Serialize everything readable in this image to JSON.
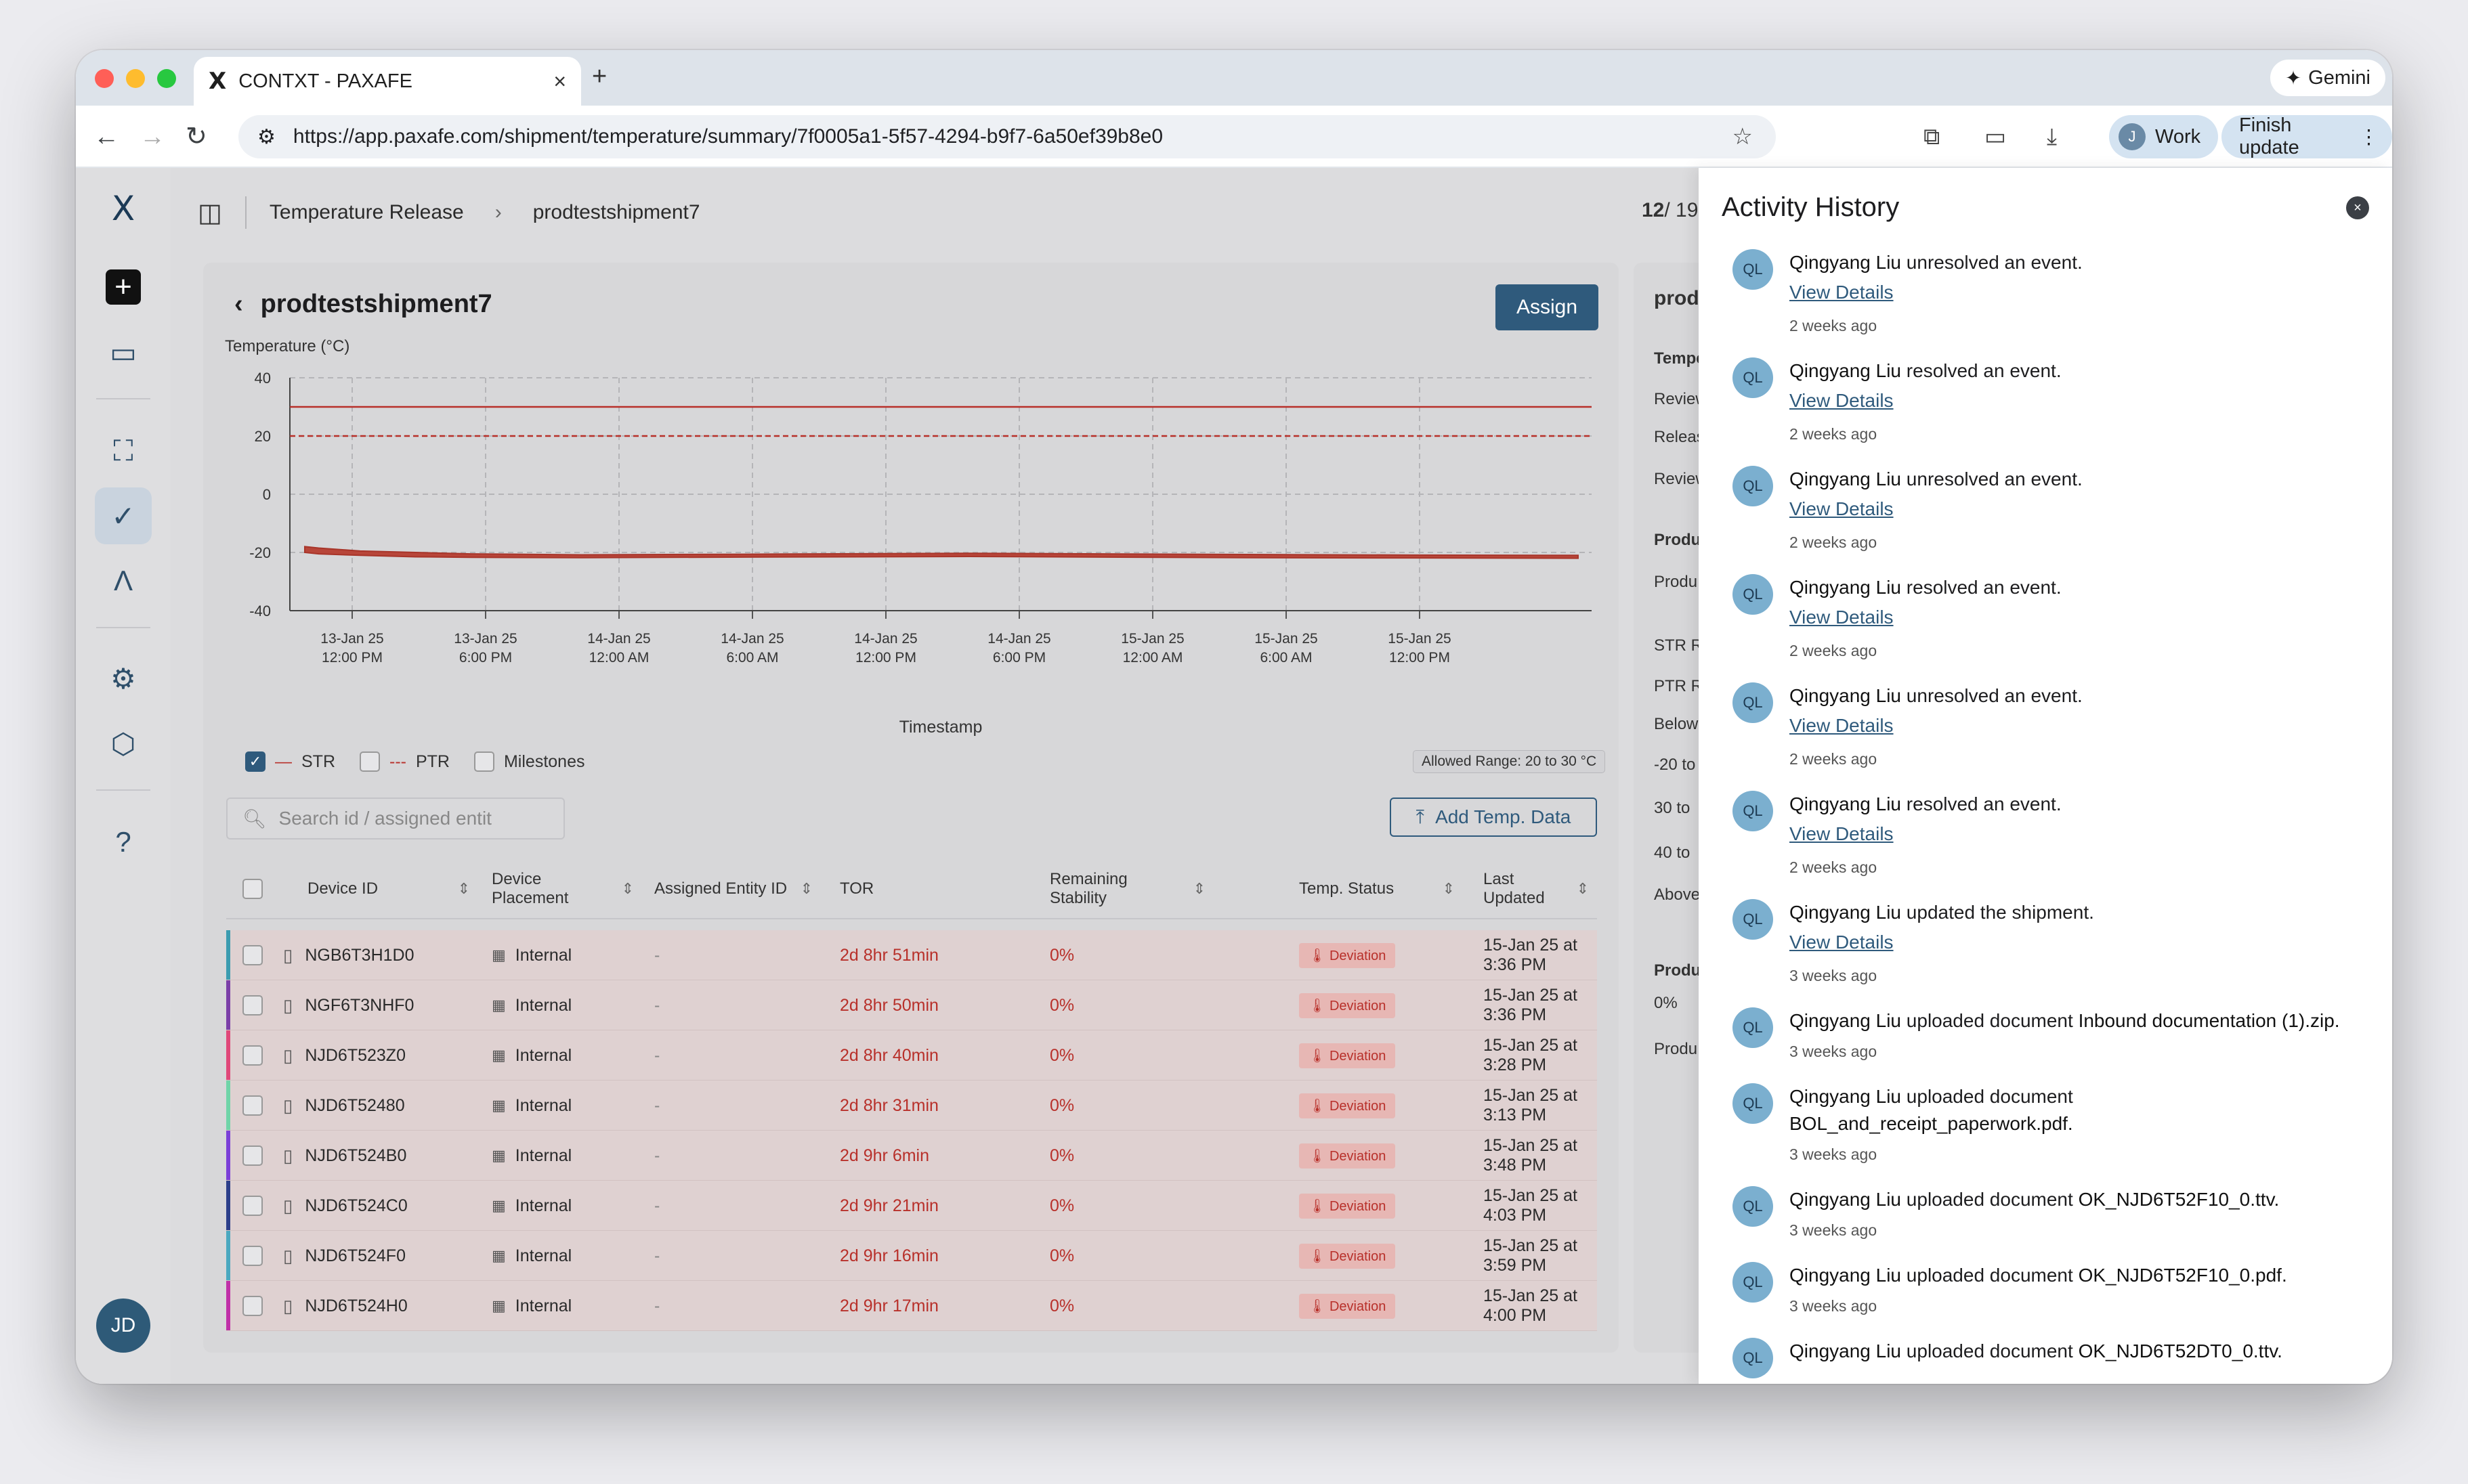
{
  "browser": {
    "tab_title": "CONTXT - PAXAFE",
    "url": "https://app.paxafe.com/shipment/temperature/summary/7f0005a1-5f57-4294-b9f7-6a50ef39b8e0",
    "gemini_label": "Gemini",
    "profile_initial": "J",
    "profile_label": "Work",
    "update_label": "Finish update"
  },
  "app": {
    "breadcrumb": [
      "Temperature Release",
      "prodtestshipment7"
    ],
    "pager_current": "12",
    "pager_total": "/ 19",
    "user_initials": "JD"
  },
  "shipment": {
    "title": "prodtestshipment7",
    "assign_label": "Assign",
    "search_placeholder": "Search id / assigned entit",
    "add_temp_label": "Add Temp. Data",
    "allowed_range": "Allowed Range: 20 to 30 °C"
  },
  "chart_data": {
    "type": "area",
    "ylabel": "Temperature (°C)",
    "xlabel": "Timestamp",
    "ylim": [
      -40,
      40
    ],
    "yticks": [
      40,
      20,
      0,
      -20,
      -40
    ],
    "xticks": [
      [
        "13-Jan 25",
        "12:00 PM"
      ],
      [
        "13-Jan 25",
        "6:00 PM"
      ],
      [
        "14-Jan 25",
        "12:00 AM"
      ],
      [
        "14-Jan 25",
        "6:00 AM"
      ],
      [
        "14-Jan 25",
        "12:00 PM"
      ],
      [
        "14-Jan 25",
        "6:00 PM"
      ],
      [
        "15-Jan 25",
        "12:00 AM"
      ],
      [
        "15-Jan 25",
        "6:00 AM"
      ],
      [
        "15-Jan 25",
        "12:00 PM"
      ]
    ],
    "threshold_lines": [
      30,
      20
    ],
    "series_band": {
      "x_hours": [
        0,
        0.5,
        2,
        4,
        6,
        10,
        16,
        24,
        34,
        40,
        46
      ],
      "upper": [
        -18,
        -18.5,
        -19.5,
        -20,
        -20.5,
        -20.8,
        -20.6,
        -20.3,
        -20.7,
        -20.9,
        -21
      ],
      "lower": [
        -20,
        -20.5,
        -21,
        -21.5,
        -21.7,
        -21.8,
        -21.6,
        -21.4,
        -21.8,
        -21.9,
        -22
      ]
    },
    "legend": [
      {
        "label": "STR",
        "checked": true
      },
      {
        "label": "PTR",
        "checked": false
      },
      {
        "label": "Milestones",
        "checked": false
      }
    ],
    "grid": true
  },
  "table": {
    "headers": [
      "Device ID",
      "Device Placement",
      "Assigned Entity ID",
      "TOR",
      "Remaining Stability",
      "Temp. Status",
      "Last Updated"
    ],
    "rows": [
      {
        "id": "NGB6T3H1D0",
        "placement": "Internal",
        "entity": "-",
        "tor": "2d 8hr 51min",
        "stability": "0%",
        "status": "Deviation",
        "updated": "15-Jan 25 at 3:36 PM",
        "color": "#3b9cb0"
      },
      {
        "id": "NGF6T3NHF0",
        "placement": "Internal",
        "entity": "-",
        "tor": "2d 8hr 50min",
        "stability": "0%",
        "status": "Deviation",
        "updated": "15-Jan 25 at 3:36 PM",
        "color": "#7b3fa8"
      },
      {
        "id": "NJD6T523Z0",
        "placement": "Internal",
        "entity": "-",
        "tor": "2d 8hr 40min",
        "stability": "0%",
        "status": "Deviation",
        "updated": "15-Jan 25 at 3:28 PM",
        "color": "#e0487a"
      },
      {
        "id": "NJD6T52480",
        "placement": "Internal",
        "entity": "-",
        "tor": "2d 8hr 31min",
        "stability": "0%",
        "status": "Deviation",
        "updated": "15-Jan 25 at 3:13 PM",
        "color": "#6fd4a8"
      },
      {
        "id": "NJD6T524B0",
        "placement": "Internal",
        "entity": "-",
        "tor": "2d 9hr 6min",
        "stability": "0%",
        "status": "Deviation",
        "updated": "15-Jan 25 at 3:48 PM",
        "color": "#7b3fd8"
      },
      {
        "id": "NJD6T524C0",
        "placement": "Internal",
        "entity": "-",
        "tor": "2d 9hr 21min",
        "stability": "0%",
        "status": "Deviation",
        "updated": "15-Jan 25 at 4:03 PM",
        "color": "#2c3f8a"
      },
      {
        "id": "NJD6T524F0",
        "placement": "Internal",
        "entity": "-",
        "tor": "2d 9hr 16min",
        "stability": "0%",
        "status": "Deviation",
        "updated": "15-Jan 25 at 3:59 PM",
        "color": "#4aa8c0"
      },
      {
        "id": "NJD6T524H0",
        "placement": "Internal",
        "entity": "-",
        "tor": "2d 9hr 17min",
        "stability": "0%",
        "status": "Deviation",
        "updated": "15-Jan 25 at 4:00 PM",
        "color": "#c030a8"
      }
    ]
  },
  "side_panel": {
    "labels": [
      "prod",
      "Tempe",
      "Review",
      "Releas",
      "Review",
      "Produ",
      "Produ",
      "STR R",
      "PTR R",
      "Below",
      "-20 to",
      "30 to",
      "40 to",
      "Above",
      "Produ",
      "0%",
      "Produ"
    ]
  },
  "activity": {
    "title": "Activity History",
    "avatar": "QL",
    "items": [
      {
        "user": "Qingyang Liu",
        "action": "unresolved an event.",
        "link": "View Details",
        "ago": "2 weeks ago"
      },
      {
        "user": "Qingyang Liu",
        "action": "resolved an event.",
        "link": "View Details",
        "ago": "2 weeks ago"
      },
      {
        "user": "Qingyang Liu",
        "action": "unresolved an event.",
        "link": "View Details",
        "ago": "2 weeks ago"
      },
      {
        "user": "Qingyang Liu",
        "action": "resolved an event.",
        "link": "View Details",
        "ago": "2 weeks ago"
      },
      {
        "user": "Qingyang Liu",
        "action": "unresolved an event.",
        "link": "View Details",
        "ago": "2 weeks ago"
      },
      {
        "user": "Qingyang Liu",
        "action": "resolved an event.",
        "link": "View Details",
        "ago": "2 weeks ago"
      },
      {
        "user": "Qingyang Liu",
        "action": "updated the shipment.",
        "link": "View Details",
        "ago": "3 weeks ago"
      },
      {
        "user": "Qingyang Liu",
        "action": "uploaded document",
        "doc": "Inbound documentation (1).zip.",
        "ago": "3 weeks ago"
      },
      {
        "user": "Qingyang Liu",
        "action": "uploaded document",
        "doc": "BOL_and_receipt_paperwork.pdf.",
        "ago": "3 weeks ago"
      },
      {
        "user": "Qingyang Liu",
        "action": "uploaded document",
        "doc": "OK_NJD6T52F10_0.ttv.",
        "ago": "3 weeks ago"
      },
      {
        "user": "Qingyang Liu",
        "action": "uploaded document",
        "doc": "OK_NJD6T52F10_0.pdf.",
        "ago": "3 weeks ago"
      },
      {
        "user": "Qingyang Liu",
        "action": "uploaded document",
        "doc": "OK_NJD6T52DT0_0.ttv.",
        "ago": ""
      }
    ]
  }
}
